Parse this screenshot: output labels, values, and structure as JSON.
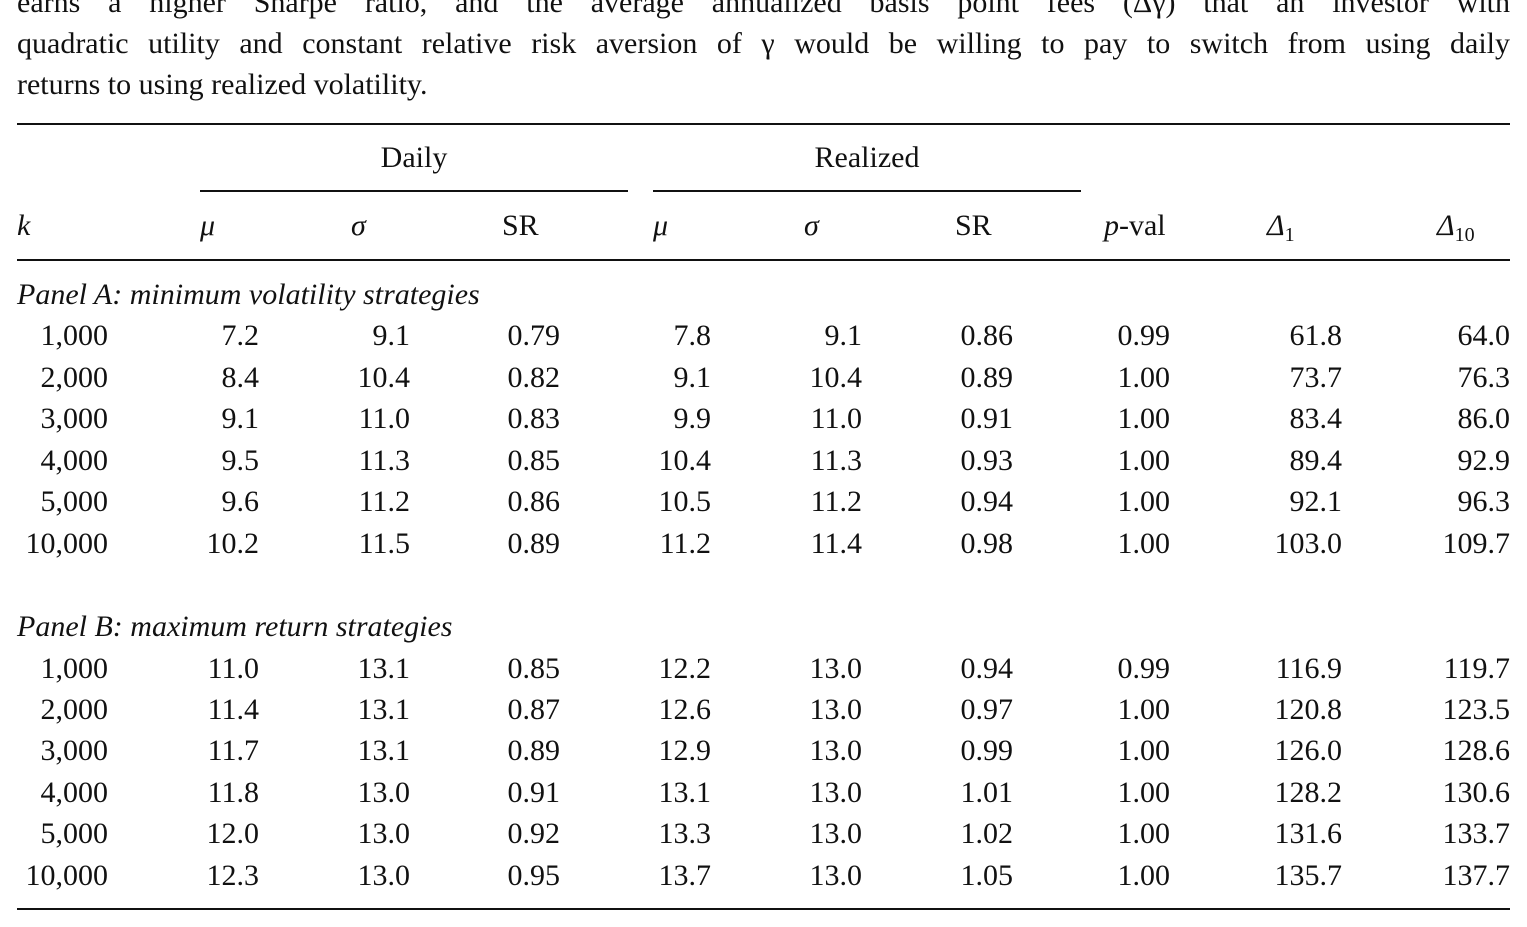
{
  "caption": {
    "line1": "earns a higher Sharpe ratio, and the average annualized basis point fees (Δγ) that an investor with",
    "line2": "quadratic utility and constant relative risk aversion of γ would be willing to pay to switch from using daily",
    "line3": "returns to using realized volatility."
  },
  "header": {
    "group_daily": "Daily",
    "group_realized": "Realized",
    "col_k": "k",
    "col_mu": "μ",
    "col_sigma": "σ",
    "col_sr": "SR",
    "col_pval_p": "p",
    "col_pval_rest": "-val",
    "col_delta": "Δ",
    "col_delta1_sub": "1",
    "col_delta10_sub": "10"
  },
  "panels": [
    {
      "title": "Panel A: minimum volatility strategies",
      "rows": [
        {
          "k": "1,000",
          "d_mu": "7.2",
          "d_sigma": "9.1",
          "d_sr": "0.79",
          "r_mu": "7.8",
          "r_sigma": "9.1",
          "r_sr": "0.86",
          "pval": "0.99",
          "d1": "61.8",
          "d10": "64.0"
        },
        {
          "k": "2,000",
          "d_mu": "8.4",
          "d_sigma": "10.4",
          "d_sr": "0.82",
          "r_mu": "9.1",
          "r_sigma": "10.4",
          "r_sr": "0.89",
          "pval": "1.00",
          "d1": "73.7",
          "d10": "76.3"
        },
        {
          "k": "3,000",
          "d_mu": "9.1",
          "d_sigma": "11.0",
          "d_sr": "0.83",
          "r_mu": "9.9",
          "r_sigma": "11.0",
          "r_sr": "0.91",
          "pval": "1.00",
          "d1": "83.4",
          "d10": "86.0"
        },
        {
          "k": "4,000",
          "d_mu": "9.5",
          "d_sigma": "11.3",
          "d_sr": "0.85",
          "r_mu": "10.4",
          "r_sigma": "11.3",
          "r_sr": "0.93",
          "pval": "1.00",
          "d1": "89.4",
          "d10": "92.9"
        },
        {
          "k": "5,000",
          "d_mu": "9.6",
          "d_sigma": "11.2",
          "d_sr": "0.86",
          "r_mu": "10.5",
          "r_sigma": "11.2",
          "r_sr": "0.94",
          "pval": "1.00",
          "d1": "92.1",
          "d10": "96.3"
        },
        {
          "k": "10,000",
          "d_mu": "10.2",
          "d_sigma": "11.5",
          "d_sr": "0.89",
          "r_mu": "11.2",
          "r_sigma": "11.4",
          "r_sr": "0.98",
          "pval": "1.00",
          "d1": "103.0",
          "d10": "109.7"
        }
      ]
    },
    {
      "title": "Panel B: maximum return strategies",
      "rows": [
        {
          "k": "1,000",
          "d_mu": "11.0",
          "d_sigma": "13.1",
          "d_sr": "0.85",
          "r_mu": "12.2",
          "r_sigma": "13.0",
          "r_sr": "0.94",
          "pval": "0.99",
          "d1": "116.9",
          "d10": "119.7"
        },
        {
          "k": "2,000",
          "d_mu": "11.4",
          "d_sigma": "13.1",
          "d_sr": "0.87",
          "r_mu": "12.6",
          "r_sigma": "13.0",
          "r_sr": "0.97",
          "pval": "1.00",
          "d1": "120.8",
          "d10": "123.5"
        },
        {
          "k": "3,000",
          "d_mu": "11.7",
          "d_sigma": "13.1",
          "d_sr": "0.89",
          "r_mu": "12.9",
          "r_sigma": "13.0",
          "r_sr": "0.99",
          "pval": "1.00",
          "d1": "126.0",
          "d10": "128.6"
        },
        {
          "k": "4,000",
          "d_mu": "11.8",
          "d_sigma": "13.0",
          "d_sr": "0.91",
          "r_mu": "13.1",
          "r_sigma": "13.0",
          "r_sr": "1.01",
          "pval": "1.00",
          "d1": "128.2",
          "d10": "130.6"
        },
        {
          "k": "5,000",
          "d_mu": "12.0",
          "d_sigma": "13.0",
          "d_sr": "0.92",
          "r_mu": "13.3",
          "r_sigma": "13.0",
          "r_sr": "1.02",
          "pval": "1.00",
          "d1": "131.6",
          "d10": "133.7"
        },
        {
          "k": "10,000",
          "d_mu": "12.3",
          "d_sigma": "13.0",
          "d_sr": "0.95",
          "r_mu": "13.7",
          "r_sigma": "13.0",
          "r_sr": "1.05",
          "pval": "1.00",
          "d1": "135.7",
          "d10": "137.7"
        }
      ]
    }
  ]
}
